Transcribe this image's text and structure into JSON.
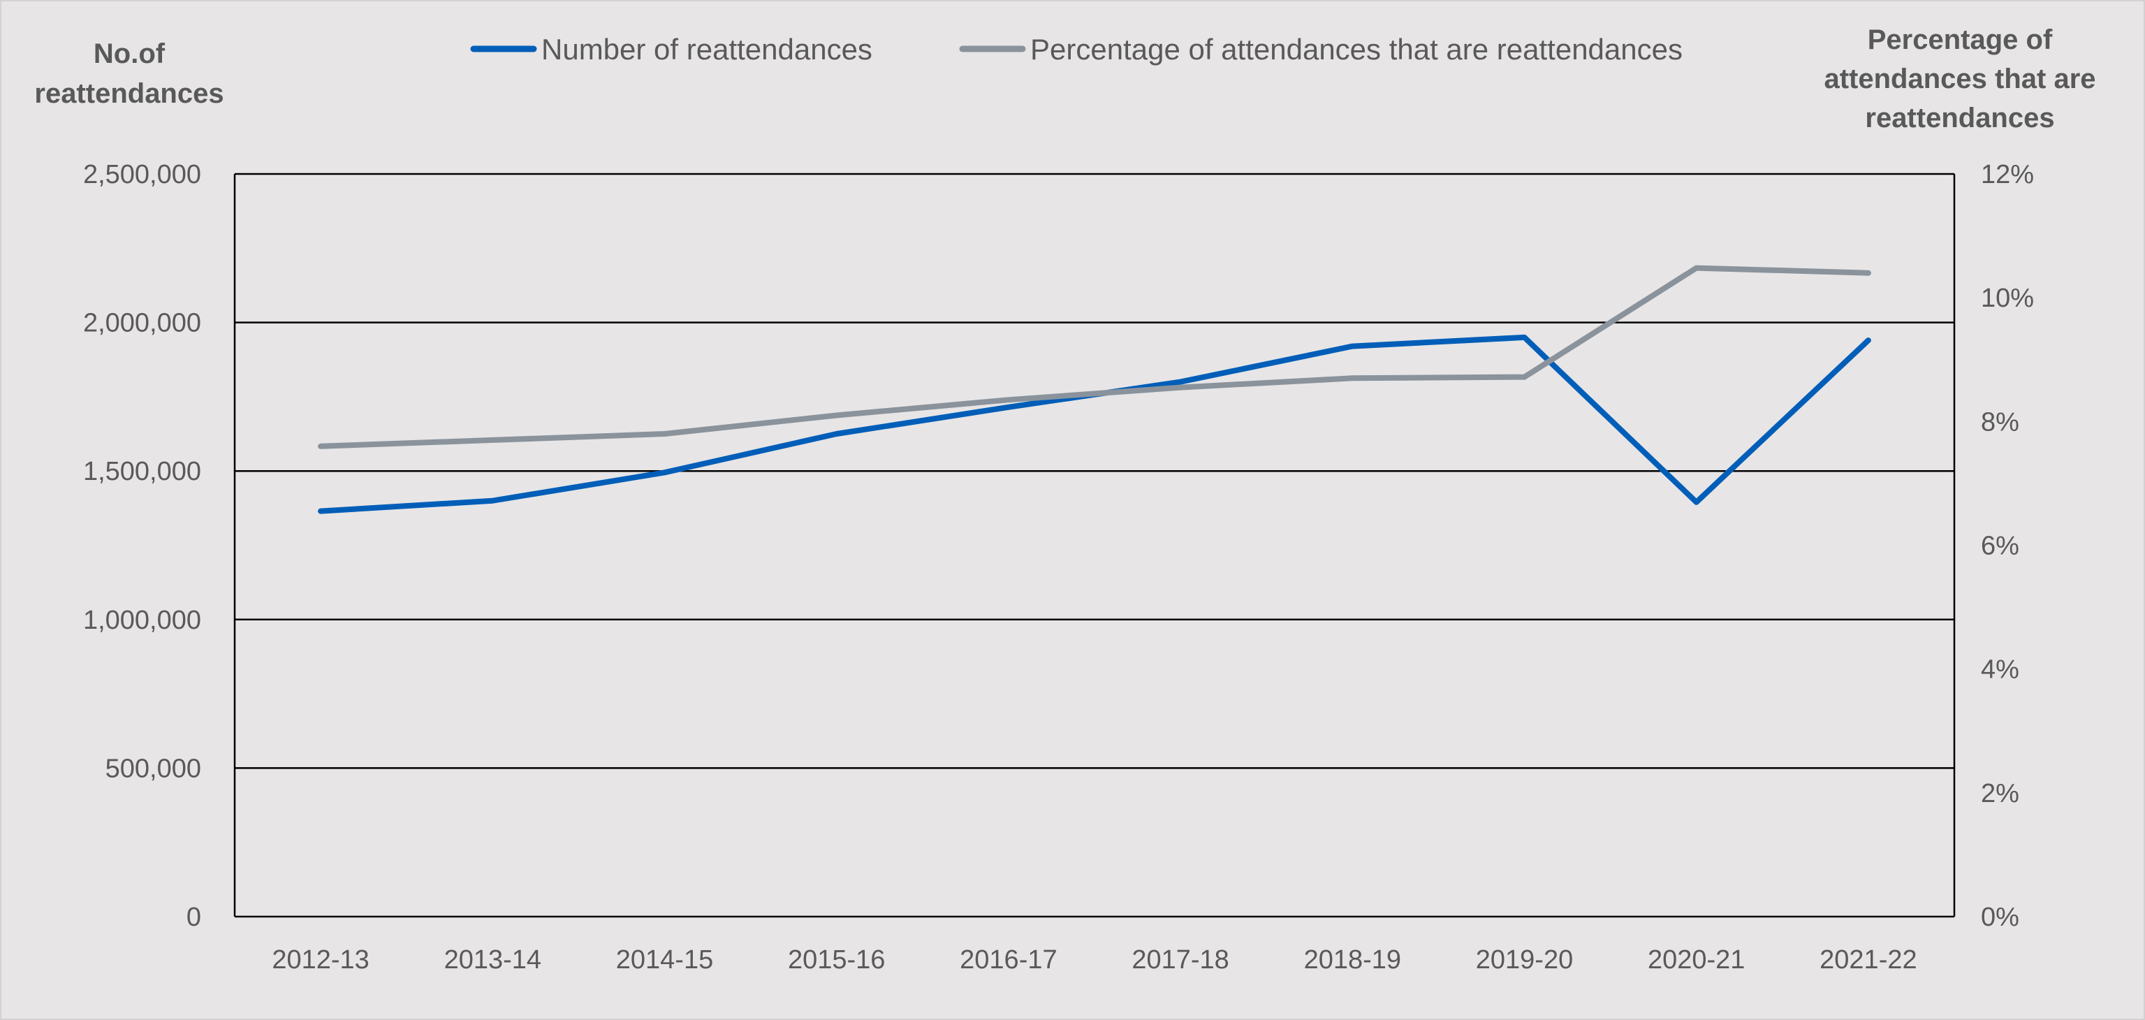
{
  "chart_data": {
    "type": "line",
    "categories": [
      "2012-13",
      "2013-14",
      "2014-15",
      "2015-16",
      "2016-17",
      "2017-18",
      "2018-19",
      "2019-20",
      "2020-21",
      "2021-22"
    ],
    "series": [
      {
        "name": "Number of reattendances",
        "axis": "left",
        "color": "#005eb8",
        "values": [
          1365000,
          1400000,
          1495000,
          1625000,
          1715000,
          1800000,
          1920000,
          1950000,
          1395000,
          1940000
        ]
      },
      {
        "name": "Percentage of attendances that are reattendances",
        "axis": "right",
        "color": "#8a939c",
        "values": [
          7.6,
          7.7,
          7.8,
          8.1,
          8.35,
          8.55,
          8.7,
          8.72,
          10.48,
          10.4
        ]
      }
    ],
    "y_left": {
      "title": [
        "No.of",
        "reattendances"
      ],
      "ylim": [
        0,
        2500000
      ],
      "ticks": [
        0,
        500000,
        1000000,
        1500000,
        2000000,
        2500000
      ],
      "tick_labels": [
        "0",
        "500,000",
        "1,000,000",
        "1,500,000",
        "2,000,000",
        "2,500,000"
      ]
    },
    "y_right": {
      "title": [
        "Percentage of",
        "attendances that are",
        "reattendances"
      ],
      "ylim": [
        0,
        12
      ],
      "ticks": [
        0,
        2,
        4,
        6,
        8,
        10,
        12
      ],
      "tick_labels": [
        "0%",
        "2%",
        "4%",
        "6%",
        "8%",
        "10%",
        "12%"
      ]
    },
    "legend_position": "top-center",
    "grid": true,
    "colors": {
      "background": "#e7e5e6",
      "text": "#595959",
      "grid": "#000000"
    }
  }
}
